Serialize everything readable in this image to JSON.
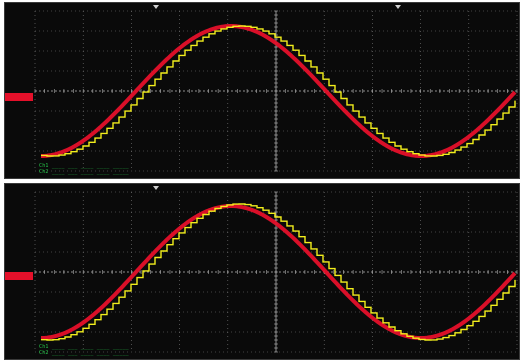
{
  "colors": {
    "background": "#0a0a0a",
    "grid": "#7d7d7d",
    "trace_reference": "#e5102a",
    "trace_measured": "#f2ee1c",
    "status_text": "#25c84a",
    "level_marker": "#e5102a"
  },
  "panels": [
    {
      "id": "top",
      "status_lines": [
        "Ch1 ____ ___ ____ ____ _____",
        "Ch2 ____ ___ ____ ____ _____"
      ],
      "reference_trace": {
        "shape": "sine",
        "amplitude_divs": 3.25,
        "cycles_shown": 1.3
      },
      "measured_trace": {
        "shape": "stepped sine",
        "amplitude_divs": 3.25,
        "cycles_shown": 1.3
      }
    },
    {
      "id": "bottom",
      "status_lines": [
        "Ch1 ____ ___ ____ ____ _____",
        "Ch2 ____ ___ ____ ____ _____"
      ],
      "reference_trace": {
        "shape": "sine",
        "amplitude_divs": 3.3,
        "cycles_shown": 1.3
      },
      "measured_trace": {
        "shape": "stepped sine",
        "amplitude_divs": 3.4,
        "cycles_shown": 1.3
      }
    }
  ],
  "grid": {
    "h_divs": 10,
    "v_divs": 8
  },
  "icons": {
    "level_marker": "ground-level-marker-icon",
    "trigger": "trigger-position-icon"
  }
}
